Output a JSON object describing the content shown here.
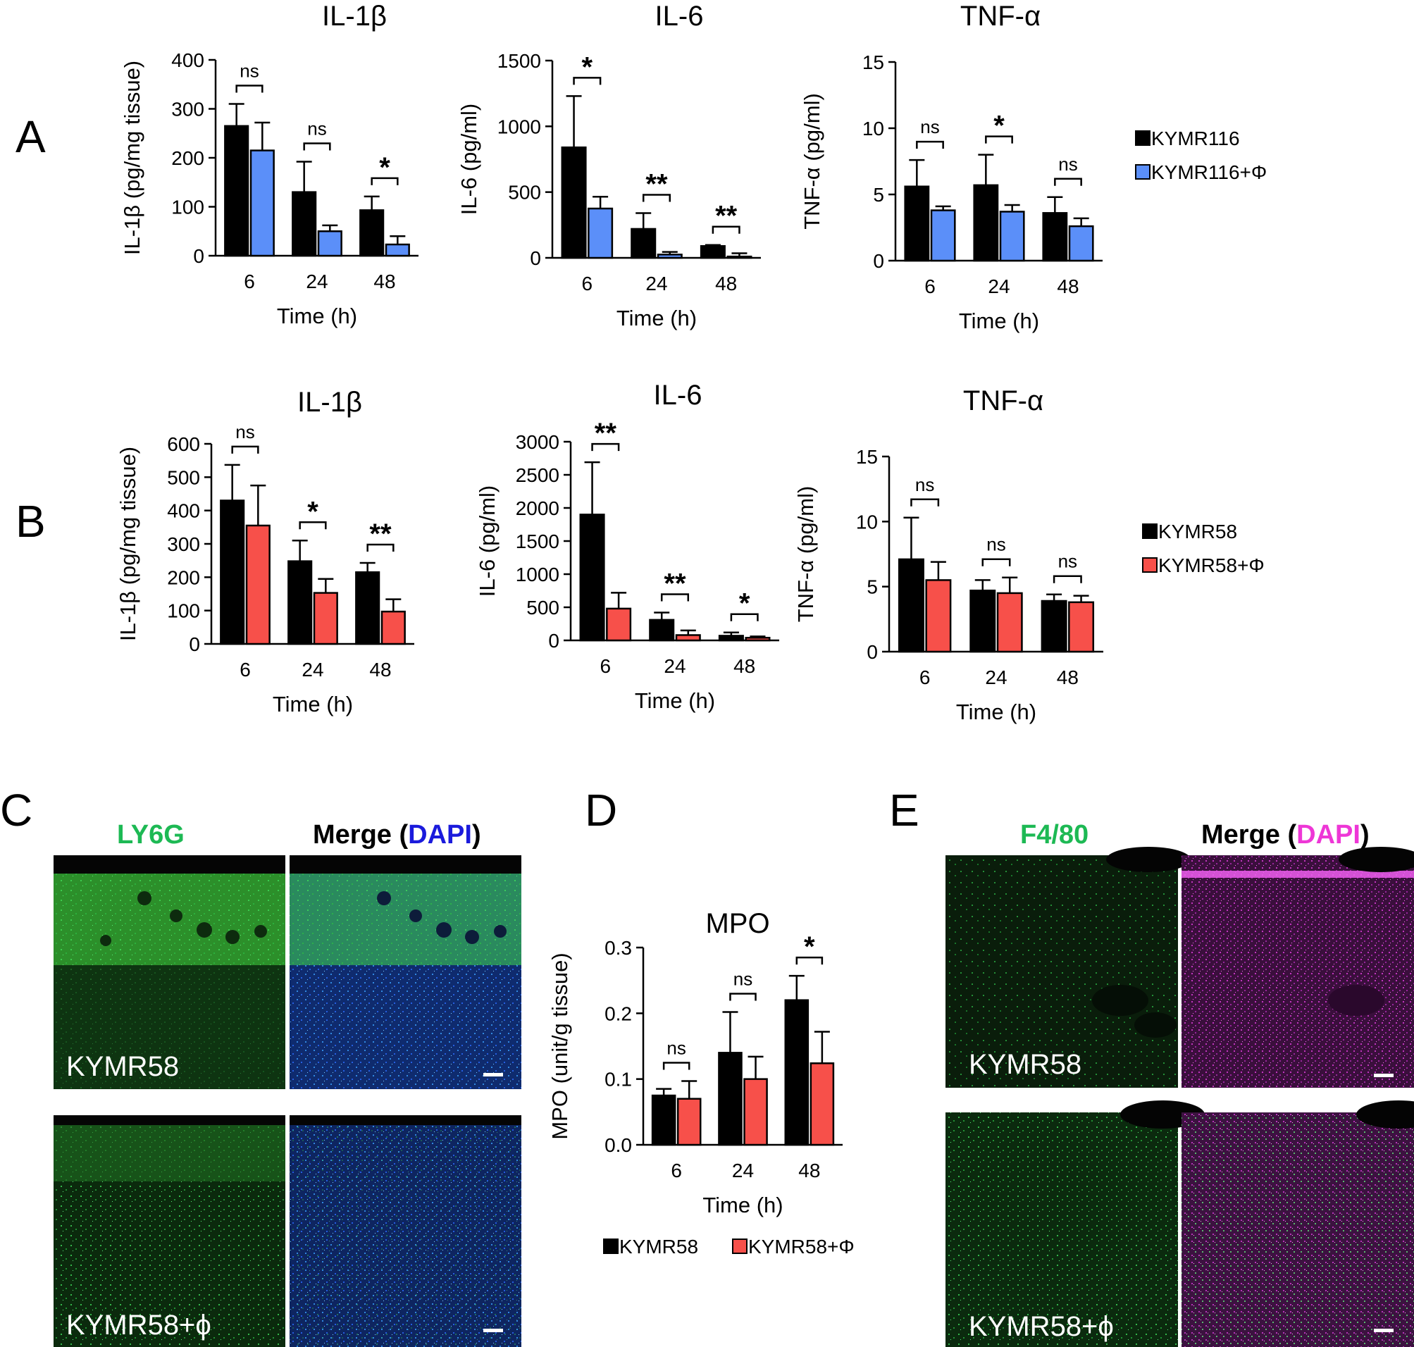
{
  "panel_labels": {
    "a": "A",
    "b": "B",
    "c": "C",
    "d": "D",
    "e": "E"
  },
  "colors": {
    "black": "#000000",
    "blue": "#5b8ff9",
    "red": "#f7504a",
    "ly6g_green": "#1db954",
    "dapi_blue": "#1b1bdc",
    "f480_green": "#1db954",
    "dapi_magenta": "#ee37d6"
  },
  "legend_a": [
    {
      "label": "KYMR116",
      "color": "#000000"
    },
    {
      "label": "KYMR116+Φ",
      "color": "#5b8ff9"
    }
  ],
  "legend_b": [
    {
      "label": "KYMR58",
      "color": "#000000"
    },
    {
      "label": "KYMR58+Φ",
      "color": "#f7504a"
    }
  ],
  "legend_d": [
    {
      "label": "KYMR58",
      "color": "#000000"
    },
    {
      "label": "KYMR58+Φ",
      "color": "#f7504a"
    }
  ],
  "micrographs": {
    "c": {
      "title_marker": "LY6G",
      "title_merge_prefix": "Merge (",
      "title_merge_stain": "DAPI",
      "title_merge_suffix": ")",
      "row_labels": [
        "KYMR58",
        "KYMR58+ϕ"
      ]
    },
    "e": {
      "title_marker": "F4/80",
      "title_merge_prefix": "Merge (",
      "title_merge_stain": "DAPI",
      "title_merge_suffix": ")",
      "row_labels": [
        "KYMR58",
        "KYMR58+ϕ"
      ]
    }
  },
  "chart_data": [
    {
      "id": "a1",
      "type": "bar",
      "title": "IL-1β",
      "xlabel": "Time (h)",
      "ylabel": "IL-1β (pg/mg tissue)",
      "categories": [
        "6",
        "24",
        "48"
      ],
      "ylim": [
        0,
        400
      ],
      "yticks": [
        "0",
        "100",
        "200",
        "300",
        "400"
      ],
      "series": [
        {
          "color": "black",
          "values": [
            265,
            130,
            93
          ],
          "errors": [
            45,
            62,
            28
          ]
        },
        {
          "color": "blue",
          "values": [
            215,
            50,
            23
          ],
          "errors": [
            57,
            12,
            17
          ]
        }
      ],
      "significance": [
        "ns",
        "ns",
        "*"
      ]
    },
    {
      "id": "a2",
      "type": "bar",
      "title": "IL-6",
      "xlabel": "Time (h)",
      "ylabel": "IL-6 (pg/ml)",
      "categories": [
        "6",
        "24",
        "48"
      ],
      "ylim": [
        0,
        1500
      ],
      "yticks": [
        "0",
        "500",
        "1000",
        "1500"
      ],
      "series": [
        {
          "color": "black",
          "values": [
            840,
            220,
            90
          ],
          "errors": [
            390,
            120,
            8
          ]
        },
        {
          "color": "blue",
          "values": [
            375,
            25,
            10
          ],
          "errors": [
            90,
            20,
            25
          ]
        }
      ],
      "significance": [
        "*",
        "**",
        "**"
      ]
    },
    {
      "id": "a3",
      "type": "bar",
      "title": "TNF-α",
      "xlabel": "Time (h)",
      "ylabel": "TNF-α (pg/ml)",
      "categories": [
        "6",
        "24",
        "48"
      ],
      "ylim": [
        0,
        15
      ],
      "yticks": [
        "0",
        "5",
        "10",
        "15"
      ],
      "series": [
        {
          "color": "black",
          "values": [
            5.6,
            5.7,
            3.6
          ],
          "errors": [
            2.0,
            2.3,
            1.2
          ]
        },
        {
          "color": "blue",
          "values": [
            3.8,
            3.7,
            2.6
          ],
          "errors": [
            0.3,
            0.5,
            0.6
          ]
        }
      ],
      "significance": [
        "ns",
        "*",
        "ns"
      ]
    },
    {
      "id": "b1",
      "type": "bar",
      "title": "IL-1β",
      "xlabel": "Time (h)",
      "ylabel": "IL-1β (pg/mg tissue)",
      "categories": [
        "6",
        "24",
        "48"
      ],
      "ylim": [
        0,
        600
      ],
      "yticks": [
        "0",
        "100",
        "200",
        "300",
        "400",
        "500",
        "600"
      ],
      "series": [
        {
          "color": "black",
          "values": [
            430,
            248,
            215
          ],
          "errors": [
            107,
            62,
            28
          ]
        },
        {
          "color": "red",
          "values": [
            355,
            153,
            97
          ],
          "errors": [
            120,
            42,
            37
          ]
        }
      ],
      "significance": [
        "ns",
        "*",
        "**"
      ]
    },
    {
      "id": "b2",
      "type": "bar",
      "title": "IL-6",
      "xlabel": "Time (h)",
      "ylabel": "IL-6 (pg/ml)",
      "categories": [
        "6",
        "24",
        "48"
      ],
      "ylim": [
        0,
        3000
      ],
      "yticks": [
        "0",
        "500",
        "1000",
        "1500",
        "2000",
        "2500",
        "3000"
      ],
      "series": [
        {
          "color": "black",
          "values": [
            1900,
            310,
            70
          ],
          "errors": [
            790,
            110,
            50
          ]
        },
        {
          "color": "red",
          "values": [
            480,
            80,
            40
          ],
          "errors": [
            240,
            70,
            20
          ]
        }
      ],
      "significance": [
        "**",
        "**",
        "*"
      ]
    },
    {
      "id": "b3",
      "type": "bar",
      "title": "TNF-α",
      "xlabel": "Time (h)",
      "ylabel": "TNF-α (pg/ml)",
      "categories": [
        "6",
        "24",
        "48"
      ],
      "ylim": [
        0,
        15
      ],
      "yticks": [
        "0",
        "5",
        "10",
        "15"
      ],
      "series": [
        {
          "color": "black",
          "values": [
            7.1,
            4.7,
            3.9
          ],
          "errors": [
            3.2,
            0.8,
            0.5
          ]
        },
        {
          "color": "red",
          "values": [
            5.5,
            4.5,
            3.8
          ],
          "errors": [
            1.4,
            1.2,
            0.5
          ]
        }
      ],
      "significance": [
        "ns",
        "ns",
        "ns"
      ]
    },
    {
      "id": "d",
      "type": "bar",
      "title": "MPO",
      "xlabel": "Time (h)",
      "ylabel": "MPO (unit/g tissue)",
      "categories": [
        "6",
        "24",
        "48"
      ],
      "ylim": [
        0,
        0.3
      ],
      "yticks": [
        "0.0",
        "0.1",
        "0.2",
        "0.3"
      ],
      "series": [
        {
          "color": "black",
          "values": [
            0.075,
            0.14,
            0.22
          ],
          "errors": [
            0.01,
            0.062,
            0.037
          ]
        },
        {
          "color": "red",
          "values": [
            0.07,
            0.1,
            0.124
          ],
          "errors": [
            0.027,
            0.034,
            0.048
          ]
        }
      ],
      "significance": [
        "ns",
        "ns",
        "*"
      ]
    }
  ]
}
